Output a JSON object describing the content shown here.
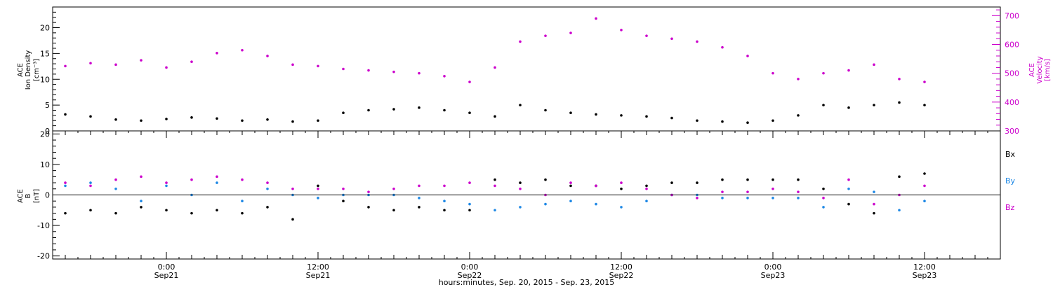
{
  "chart_data": [
    {
      "type": "scatter",
      "panel": "top",
      "title": "",
      "xlabel": "",
      "ylabel_left": [
        "ACE",
        "Ion Density",
        "[cm⁻³]"
      ],
      "ylabel_right": [
        "ACE",
        "Velocity",
        "[km/s]"
      ],
      "y_left_ticks": [
        "0",
        "5",
        "10",
        "15",
        "20"
      ],
      "y_right_ticks": [
        "300",
        "400",
        "500",
        "600",
        "700"
      ],
      "ylim_left": [
        0,
        24
      ],
      "ylim_right": [
        300,
        730
      ],
      "x_units": "hours since 2015-09-20 00:00 UT",
      "series": [
        {
          "name": "",
          "axis": "left",
          "color": "#000000",
          "x": [
            16,
            18,
            20,
            22,
            24,
            26,
            28,
            30,
            32,
            34,
            36,
            38,
            40,
            42,
            44,
            46,
            48,
            50,
            52,
            54,
            56,
            58,
            60,
            62,
            64,
            66,
            68,
            70,
            72,
            74,
            76,
            78,
            80,
            82,
            84
          ],
          "y": [
            3.2,
            2.8,
            2.2,
            2.0,
            2.3,
            2.6,
            2.4,
            2.0,
            2.2,
            1.8,
            2.0,
            3.5,
            4.0,
            4.2,
            4.5,
            4.0,
            3.5,
            2.8,
            5.0,
            4.0,
            3.5,
            3.2,
            3.0,
            2.8,
            2.5,
            2.0,
            1.8,
            1.6,
            2.0,
            3.0,
            5.0,
            4.5,
            5.0,
            5.5,
            5.0
          ]
        },
        {
          "name": "",
          "axis": "right",
          "color": "#cc00cc",
          "x": [
            16,
            18,
            20,
            22,
            24,
            26,
            28,
            30,
            32,
            34,
            36,
            38,
            40,
            42,
            44,
            46,
            48,
            50,
            52,
            54,
            56,
            58,
            60,
            62,
            64,
            66,
            68,
            70,
            72,
            74,
            76,
            78,
            80,
            82,
            84
          ],
          "y": [
            525,
            535,
            530,
            545,
            520,
            540,
            570,
            580,
            560,
            530,
            525,
            515,
            510,
            505,
            500,
            490,
            470,
            520,
            610,
            630,
            640,
            690,
            650,
            630,
            620,
            610,
            590,
            560,
            500,
            480,
            500,
            510,
            530,
            480,
            470
          ]
        }
      ]
    },
    {
      "type": "scatter",
      "panel": "bottom",
      "title": "",
      "xlabel": "hours:minutes, Sep. 20, 2015 - Sep. 23, 2015",
      "ylabel_left": [
        "ACE",
        "B",
        "[nT]"
      ],
      "y_left_ticks": [
        "-20",
        "-10",
        "0",
        "10",
        "20"
      ],
      "ylim_left": [
        -21,
        21
      ],
      "x_ticks": [
        {
          "x": 24,
          "time": "0:00",
          "day": "Sep21"
        },
        {
          "x": 36,
          "time": "12:00",
          "day": "Sep21"
        },
        {
          "x": 48,
          "time": "0:00",
          "day": "Sep22"
        },
        {
          "x": 60,
          "time": "12:00",
          "day": "Sep22"
        },
        {
          "x": 72,
          "time": "0:00",
          "day": "Sep23"
        },
        {
          "x": 84,
          "time": "12:00",
          "day": "Sep23"
        }
      ],
      "xlim": [
        15,
        90
      ],
      "series": [
        {
          "name": "Bx",
          "color": "#000000",
          "x": [
            16,
            18,
            20,
            22,
            24,
            26,
            28,
            30,
            32,
            34,
            36,
            38,
            40,
            42,
            44,
            46,
            48,
            50,
            52,
            54,
            56,
            58,
            60,
            62,
            64,
            66,
            68,
            70,
            72,
            74,
            76,
            78,
            80,
            82,
            84
          ],
          "y": [
            -6,
            -5,
            -6,
            -4,
            -5,
            -6,
            -5,
            -6,
            -4,
            -8,
            3,
            -2,
            -4,
            -5,
            -4,
            -5,
            -5,
            5,
            4,
            5,
            3,
            3,
            2,
            3,
            4,
            4,
            5,
            5,
            5,
            5,
            2,
            -3,
            -6,
            6,
            7
          ]
        },
        {
          "name": "By",
          "color": "#1e88e5",
          "x": [
            16,
            18,
            20,
            22,
            24,
            26,
            28,
            30,
            32,
            34,
            36,
            38,
            40,
            42,
            44,
            46,
            48,
            50,
            52,
            54,
            56,
            58,
            60,
            62,
            64,
            66,
            68,
            70,
            72,
            74,
            76,
            78,
            80,
            82,
            84
          ],
          "y": [
            3,
            4,
            2,
            -2,
            3,
            0,
            4,
            -2,
            2,
            0,
            -1,
            0,
            0,
            0,
            -1,
            -2,
            -3,
            -5,
            -4,
            -3,
            -2,
            -3,
            -4,
            -2,
            0,
            0,
            -1,
            -1,
            -1,
            -1,
            -4,
            2,
            1,
            -5,
            -2
          ]
        },
        {
          "name": "Bz",
          "color": "#cc00cc",
          "x": [
            16,
            18,
            20,
            22,
            24,
            26,
            28,
            30,
            32,
            34,
            36,
            38,
            40,
            42,
            44,
            46,
            48,
            50,
            52,
            54,
            56,
            58,
            60,
            62,
            64,
            66,
            68,
            70,
            72,
            74,
            76,
            78,
            80,
            82,
            84
          ],
          "y": [
            4,
            3,
            5,
            6,
            4,
            5,
            6,
            5,
            4,
            2,
            2,
            2,
            1,
            2,
            3,
            3,
            4,
            3,
            2,
            0,
            4,
            3,
            4,
            2,
            0,
            -1,
            1,
            1,
            2,
            1,
            -1,
            5,
            -3,
            0,
            3
          ]
        }
      ]
    }
  ]
}
